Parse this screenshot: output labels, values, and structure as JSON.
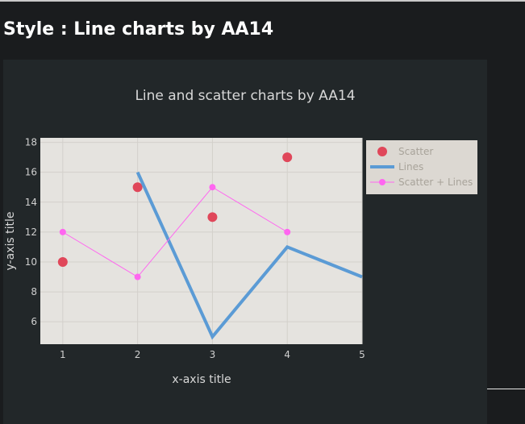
{
  "page": {
    "heading": "Style : Line charts by AA14"
  },
  "colors": {
    "page_bg": "#1a1c1e",
    "card_bg": "#222729",
    "plot_bg": "#e5e3df",
    "legend_bg": "#dcd8d2",
    "grid": "#d3d0cb",
    "scatter": "#e0475a",
    "lines": "#5b9bd5",
    "scatter_lines": "#ff66f0"
  },
  "chart_data": {
    "type": "line",
    "title": "Line and scatter charts by AA14",
    "xlabel": "x-axis title",
    "ylabel": "y-axis title",
    "xlim": [
      0.7,
      5
    ],
    "ylim": [
      4.5,
      18.3
    ],
    "xticks": [
      1,
      2,
      3,
      4,
      5
    ],
    "yticks": [
      6,
      8,
      10,
      12,
      14,
      16,
      18
    ],
    "grid": true,
    "legend_position": "right",
    "series": [
      {
        "name": "Scatter",
        "mode": "markers",
        "color_key": "scatter",
        "x": [
          1,
          2,
          3,
          4
        ],
        "y": [
          10,
          15,
          13,
          17
        ]
      },
      {
        "name": "Lines",
        "mode": "lines",
        "color_key": "lines",
        "x": [
          2,
          3,
          4,
          5
        ],
        "y": [
          16,
          5,
          11,
          9
        ]
      },
      {
        "name": "Scatter + Lines",
        "mode": "lines+markers",
        "color_key": "scatter_lines",
        "x": [
          1,
          2,
          3,
          4
        ],
        "y": [
          12,
          9,
          15,
          12
        ]
      }
    ]
  }
}
